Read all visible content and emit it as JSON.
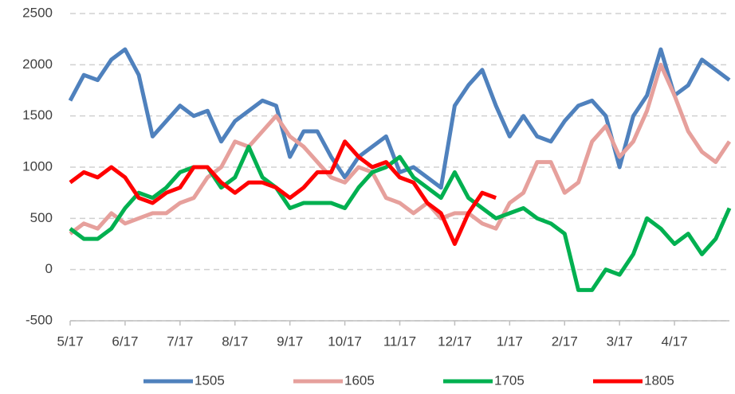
{
  "chart_data": {
    "type": "line",
    "categories": [
      "5/17",
      null,
      null,
      null,
      "6/17",
      null,
      null,
      null,
      "7/17",
      null,
      null,
      null,
      "8/17",
      null,
      null,
      null,
      "9/17",
      null,
      null,
      null,
      "10/17",
      null,
      null,
      null,
      "11/17",
      null,
      null,
      null,
      "12/17",
      null,
      null,
      null,
      "1/17",
      null,
      null,
      null,
      "2/17",
      null,
      null,
      null,
      "3/17",
      null,
      null,
      null,
      "4/17",
      null,
      null,
      null,
      null
    ],
    "series": [
      {
        "name": "1505",
        "color": "#4f81bd",
        "values": [
          1650,
          1900,
          1850,
          2050,
          2150,
          1900,
          1300,
          1450,
          1600,
          1500,
          1550,
          1250,
          1450,
          1550,
          1650,
          1600,
          1100,
          1350,
          1350,
          1100,
          900,
          1100,
          1200,
          1300,
          950,
          1000,
          900,
          800,
          1600,
          1800,
          1950,
          1600,
          1300,
          1500,
          1300,
          1250,
          1450,
          1600,
          1650,
          1500,
          1000,
          1500,
          1700,
          2150,
          1700,
          1800,
          2050,
          1950,
          1850
        ]
      },
      {
        "name": "1605",
        "color": "#e6a09c",
        "values": [
          350,
          450,
          400,
          550,
          450,
          500,
          550,
          550,
          650,
          700,
          900,
          1000,
          1250,
          1200,
          1350,
          1500,
          1300,
          1200,
          1050,
          900,
          850,
          1000,
          950,
          700,
          650,
          550,
          650,
          500,
          550,
          550,
          450,
          400,
          650,
          750,
          1050,
          1050,
          750,
          850,
          1250,
          1400,
          1100,
          1250,
          1550,
          2000,
          1700,
          1350,
          1150,
          1050,
          1250
        ]
      },
      {
        "name": "1705",
        "color": "#00b050",
        "values": [
          400,
          300,
          300,
          400,
          600,
          750,
          700,
          800,
          950,
          1000,
          1000,
          800,
          900,
          1200,
          900,
          800,
          600,
          650,
          650,
          650,
          600,
          800,
          950,
          1000,
          1100,
          900,
          800,
          700,
          950,
          700,
          600,
          500,
          550,
          600,
          500,
          450,
          350,
          -200,
          -200,
          0,
          -50,
          150,
          500,
          400,
          250,
          350,
          150,
          300,
          600
        ]
      },
      {
        "name": "1805",
        "color": "#ff0000",
        "values": [
          850,
          950,
          900,
          1000,
          900,
          700,
          650,
          750,
          800,
          1000,
          1000,
          850,
          750,
          850,
          850,
          800,
          700,
          800,
          950,
          950,
          1250,
          1100,
          1000,
          1050,
          900,
          850,
          650,
          550,
          250,
          550,
          750,
          700,
          null,
          null,
          null,
          null,
          null,
          null,
          null,
          null,
          null,
          null,
          null,
          null,
          null,
          null,
          null,
          null,
          null
        ]
      }
    ],
    "ylim": [
      -500,
      2500
    ],
    "yticks": [
      -500,
      0,
      500,
      1000,
      1500,
      2000,
      2500
    ],
    "grid": true,
    "legend": "bottom"
  }
}
